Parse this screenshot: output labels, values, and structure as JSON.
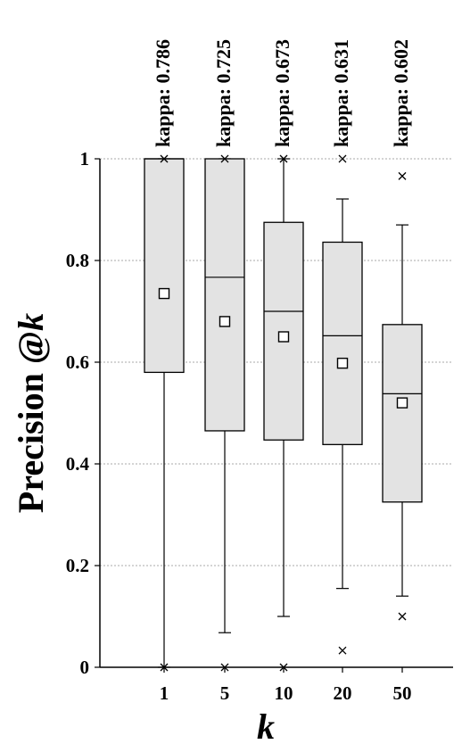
{
  "chart_data": {
    "type": "box",
    "xlabel": "k",
    "ylabel_main": "Precision @",
    "ylabel_italic": "k",
    "ylim": [
      0,
      1
    ],
    "y_ticks": [
      "0",
      "0.2",
      "0.4",
      "0.6",
      "0.8",
      "1"
    ],
    "y_tick_values": [
      0,
      0.2,
      0.4,
      0.6,
      0.8,
      1
    ],
    "grid": true,
    "categories": [
      "1",
      "5",
      "10",
      "20",
      "50"
    ],
    "kappa": [
      "kappa: 0.786",
      "kappa: 0.725",
      "kappa: 0.673",
      "kappa: 0.631",
      "kappa: 0.602"
    ],
    "boxes": [
      {
        "whisker_low": 0.0,
        "q1": 0.58,
        "median": 1.0,
        "q3": 1.0,
        "whisker_high": 1.0,
        "mean": 0.735,
        "outliers": [
          0.0,
          1.0
        ]
      },
      {
        "whisker_low": 0.068,
        "q1": 0.465,
        "median": 0.767,
        "q3": 1.0,
        "whisker_high": 1.0,
        "mean": 0.68,
        "outliers": [
          0.0,
          1.0
        ]
      },
      {
        "whisker_low": 0.1,
        "q1": 0.447,
        "median": 0.7,
        "q3": 0.875,
        "whisker_high": 1.0,
        "mean": 0.65,
        "outliers": [
          0.0,
          1.0
        ]
      },
      {
        "whisker_low": 0.155,
        "q1": 0.438,
        "median": 0.652,
        "q3": 0.836,
        "whisker_high": 0.921,
        "mean": 0.598,
        "outliers": [
          0.033,
          1.0
        ]
      },
      {
        "whisker_low": 0.14,
        "q1": 0.325,
        "median": 0.538,
        "q3": 0.674,
        "whisker_high": 0.87,
        "mean": 0.52,
        "outliers": [
          0.1,
          0.966
        ]
      }
    ]
  }
}
